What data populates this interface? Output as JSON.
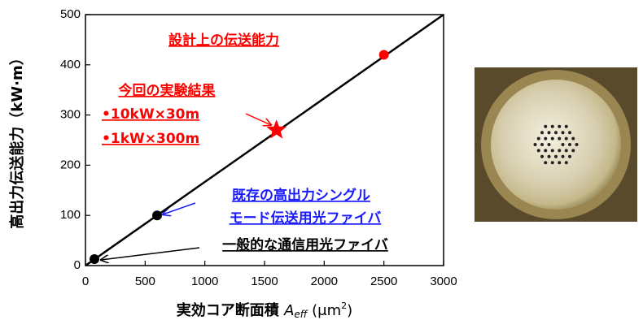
{
  "chart_data": {
    "type": "scatter",
    "ylabel": "高出力伝送能力（kW·m）",
    "xlabel": [
      "実効コア断面積 ",
      "A",
      "eff",
      " (μm",
      "2",
      ")"
    ],
    "xlim": [
      0,
      3000
    ],
    "xticks": [
      0,
      500,
      1000,
      1500,
      2000,
      2500,
      3000
    ],
    "ylim": [
      0,
      500
    ],
    "yticks": [
      0,
      100,
      200,
      300,
      400,
      500
    ],
    "line": {
      "x": [
        0,
        3000
      ],
      "y": [
        0,
        500
      ],
      "color": "#000000"
    },
    "points": {
      "x": [
        75,
        600,
        1600,
        2500
      ],
      "y": [
        13,
        100,
        270,
        420
      ],
      "colors": [
        "#000000",
        "#000000",
        "#ff0000",
        "#ff0000"
      ],
      "markers": [
        "circle",
        "circle",
        "star",
        "circle"
      ]
    },
    "annotations": {
      "design": "設計上の伝送能力",
      "experiment": "今回の実験結果",
      "experiment_items": [
        "•10kW×30m",
        "•1kW×300m"
      ],
      "existing": [
        "既存の高出力シングル",
        "モード伝送用光ファイバ"
      ],
      "general": "一般的な通信用光ファイバ"
    }
  }
}
